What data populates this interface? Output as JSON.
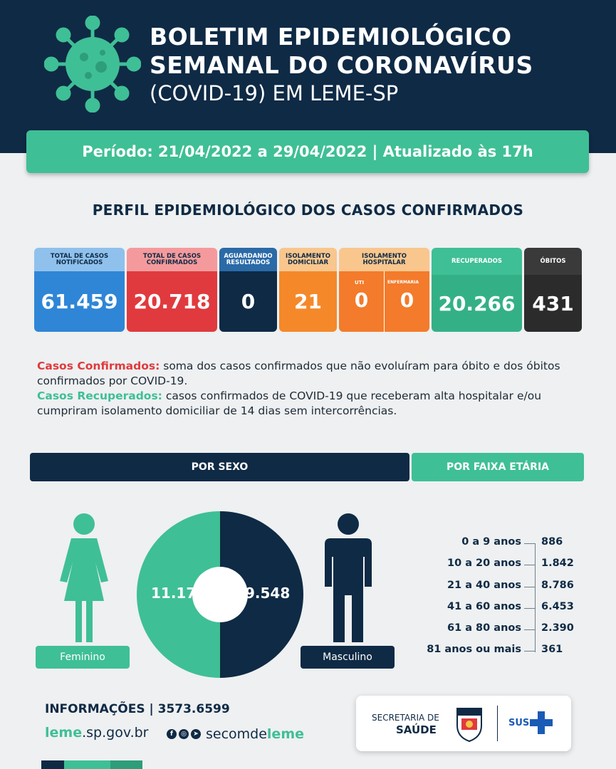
{
  "header": {
    "title_line1": "BOLETIM EPIDEMIOLÓGICO",
    "title_line2": "SEMANAL DO CORONAVÍRUS",
    "title_line3": "(COVID-19) EM LEME-SP"
  },
  "period": "Período: 21/04/2022 a 29/04/2022 | Atualizado às 17h",
  "section_title": "PERFIL EPIDEMIOLÓGICO DOS CASOS CONFIRMADOS",
  "stats": {
    "notificados": {
      "label": "TOTAL DE CASOS NOTIFICADOS",
      "value": "61.459"
    },
    "confirmados": {
      "label": "TOTAL DE CASOS CONFIRMADOS",
      "value": "20.718"
    },
    "aguardando": {
      "label": "AGUARDANDO RESULTADOS",
      "value": "0"
    },
    "isol_dom": {
      "label": "ISOLAMENTO DOMICILIAR",
      "value": "21"
    },
    "isol_hosp": {
      "label": "ISOLAMENTO HOSPITALAR",
      "uti_label": "UTI",
      "uti_value": "0",
      "enf_label": "ENFERMARIA",
      "enf_value": "0"
    },
    "recuperados": {
      "label": "RECUPERADOS",
      "value": "20.266"
    },
    "obitos": {
      "label": "ÓBITOS",
      "value": "431"
    }
  },
  "legend": {
    "confirmed_term": "Casos Confirmados:",
    "confirmed_text": " soma dos casos confirmados que não evoluíram para óbito e dos óbitos confirmados por COVID-19.",
    "recovered_term": "Casos Recuperados:",
    "recovered_text": " casos confirmados de COVID-19 que receberam alta hospitalar e/ou cumpriram isolamento domiciliar de 14 dias sem intercorrências."
  },
  "tabs": {
    "sexo": "POR SEXO",
    "idade": "POR FAIXA ETÁRIA"
  },
  "sex": {
    "female_value": "11.170",
    "male_value": "9.548",
    "female_label": "Feminino",
    "male_label": "Masculino",
    "female_share": 0.539,
    "male_share": 0.461
  },
  "age_groups": [
    {
      "range": "0 a 9 anos",
      "value": "886"
    },
    {
      "range": "10 a 20 anos",
      "value": "1.842"
    },
    {
      "range": "21 a 40 anos",
      "value": "8.786"
    },
    {
      "range": "41 a 60 anos",
      "value": "6.453"
    },
    {
      "range": "61 a 80 anos",
      "value": "2.390"
    },
    {
      "range": "81 anos ou mais",
      "value": "361"
    }
  ],
  "footer": {
    "info": "INFORMAÇÕES | 3573.6599",
    "site_prefix": "leme",
    "site_suffix": ".sp.gov.br",
    "social_prefix": "secomde",
    "social_suffix": "leme",
    "secretaria": "SECRETARIA DE",
    "saude": "SAÚDE",
    "sus": "SUS"
  },
  "colors": {
    "navy": "#0f2a45",
    "green": "#3fbf95",
    "blue": "#2f86d6",
    "red": "#e03a3e",
    "orange": "#f5892a",
    "dark": "#2b2b2b"
  }
}
